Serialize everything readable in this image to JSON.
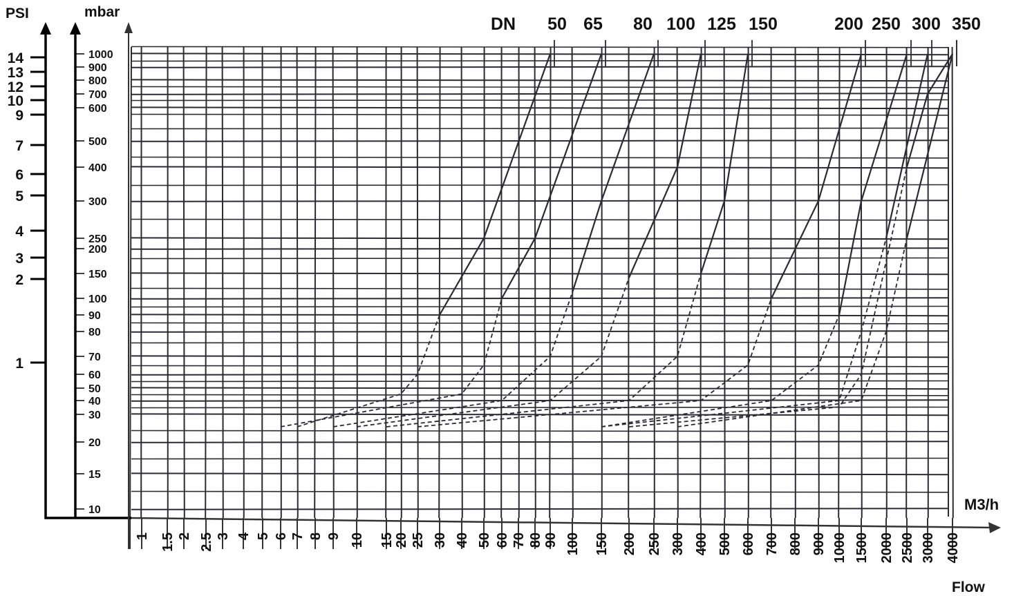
{
  "chart_data": {
    "type": "line",
    "xlabel": "M3/h",
    "xlabel2": "Flow",
    "dn_label": "DN",
    "psi_label": "PSI",
    "mbar_label": "mbar",
    "x_ticks": [
      "1",
      "1.5",
      "2",
      "2.5",
      "3",
      "4",
      "5",
      "6",
      "7",
      "8",
      "9",
      "10",
      "15",
      "20",
      "25",
      "30",
      "40",
      "50",
      "60",
      "70",
      "80",
      "90",
      "100",
      "150",
      "200",
      "250",
      "300",
      "400",
      "500",
      "600",
      "700",
      "800",
      "900",
      "1000",
      "1500",
      "2000",
      "2500",
      "3000",
      "4000"
    ],
    "mbar_ticks": [
      "1000",
      "900",
      "800",
      "700",
      "600",
      "500",
      "400",
      "300",
      "250",
      "200",
      "150",
      "100",
      "90",
      "80",
      "70",
      "60",
      "50",
      "40",
      "30",
      "20",
      "15",
      "10"
    ],
    "psi_ticks": [
      "14",
      "13",
      "12",
      "10",
      "9",
      "7",
      "6",
      "5",
      "4",
      "3",
      "2",
      "1"
    ],
    "grid": true,
    "series": [
      {
        "name": "50",
        "points": [
          [
            7,
            25
          ],
          [
            20,
            45
          ],
          [
            25,
            60
          ],
          [
            30,
            90
          ],
          [
            50,
            250
          ],
          [
            90,
            1000
          ]
        ]
      },
      {
        "name": "65",
        "points": [
          [
            6,
            25
          ],
          [
            40,
            45
          ],
          [
            50,
            65
          ],
          [
            60,
            100
          ],
          [
            80,
            250
          ],
          [
            150,
            1000
          ]
        ]
      },
      {
        "name": "80",
        "points": [
          [
            9,
            25
          ],
          [
            60,
            40
          ],
          [
            90,
            70
          ],
          [
            100,
            110
          ],
          [
            150,
            300
          ],
          [
            250,
            1000
          ]
        ]
      },
      {
        "name": "100",
        "points": [
          [
            10,
            25
          ],
          [
            90,
            40
          ],
          [
            150,
            70
          ],
          [
            200,
            140
          ],
          [
            300,
            400
          ],
          [
            400,
            1000
          ]
        ]
      },
      {
        "name": "125",
        "points": [
          [
            15,
            25
          ],
          [
            200,
            40
          ],
          [
            300,
            70
          ],
          [
            400,
            150
          ],
          [
            500,
            300
          ],
          [
            600,
            1000
          ]
        ]
      },
      {
        "name": "150",
        "points": [
          [
            25,
            25
          ],
          [
            400,
            40
          ],
          [
            600,
            65
          ],
          [
            700,
            100
          ],
          [
            900,
            300
          ],
          [
            1500,
            1000
          ]
        ]
      },
      {
        "name": "200",
        "points": [
          [
            150,
            25
          ],
          [
            700,
            40
          ],
          [
            900,
            65
          ],
          [
            1000,
            90
          ],
          [
            1500,
            300
          ],
          [
            2500,
            1000
          ]
        ]
      },
      {
        "name": "250",
        "points": [
          [
            150,
            25
          ],
          [
            1000,
            40
          ],
          [
            1500,
            80
          ],
          [
            2000,
            250
          ],
          [
            3000,
            1000
          ]
        ]
      },
      {
        "name": "300",
        "points": [
          [
            200,
            25
          ],
          [
            1000,
            35
          ],
          [
            1500,
            60
          ],
          [
            2500,
            400
          ],
          [
            3000,
            700
          ],
          [
            4000,
            1000
          ]
        ]
      },
      {
        "name": "350",
        "points": [
          [
            300,
            25
          ],
          [
            1500,
            40
          ],
          [
            2000,
            80
          ],
          [
            2500,
            250
          ],
          [
            4000,
            1000
          ]
        ]
      }
    ]
  }
}
